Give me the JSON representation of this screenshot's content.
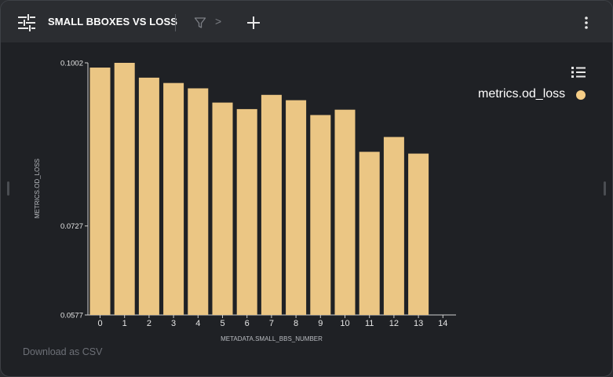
{
  "header": {
    "title": "SMALL BBOXES VS LOSS",
    "crumb_separator": ">"
  },
  "legend": {
    "label": "metrics.od_loss",
    "color": "#f5cd86"
  },
  "footer": {
    "download_label": "Download as CSV"
  },
  "icons": [
    "sliders-icon",
    "filter-icon",
    "plus-icon",
    "kebab-menu-icon",
    "list-icon"
  ],
  "chart_data": {
    "type": "bar",
    "xlabel": "METADATA.SMALL_BBS_NUMBER",
    "ylabel": "METRICS.OD_LOSS",
    "categories": [
      "0",
      "1",
      "2",
      "3",
      "4",
      "5",
      "6",
      "7",
      "8",
      "9",
      "10",
      "11",
      "12",
      "13",
      "14"
    ],
    "series": [
      {
        "name": "metrics.od_loss",
        "color": "#ebc684",
        "values": [
          0.0994,
          0.1002,
          0.0977,
          0.0968,
          0.0959,
          0.0935,
          0.0924,
          0.0948,
          0.0939,
          0.0914,
          0.0923,
          0.0852,
          0.0877,
          0.0849,
          null
        ]
      }
    ],
    "y_ticks": [
      "0.1002",
      "0.0727",
      "0.0577"
    ],
    "ylim": [
      0.0577,
      0.1002
    ],
    "grid": false,
    "legend_position": "top-right"
  }
}
